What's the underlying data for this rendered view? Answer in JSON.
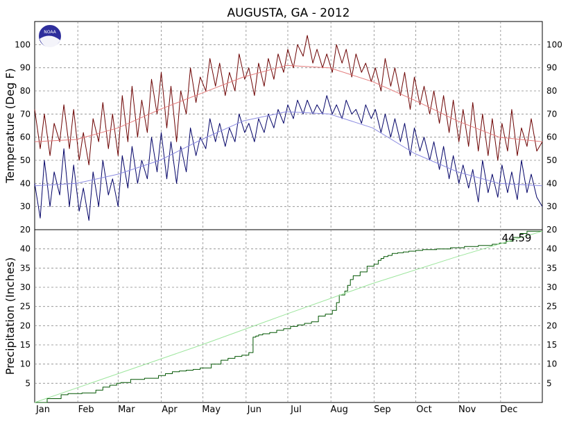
{
  "chart_data": [
    {
      "type": "line",
      "title": "AUGUSTA, GA - 2012",
      "ylabel": "Temperature (Deg F)",
      "ylim": [
        20,
        110
      ],
      "yticks": [
        20,
        30,
        40,
        50,
        60,
        70,
        80,
        90,
        100
      ],
      "xlim": [
        1,
        366
      ],
      "grid": true,
      "series": [
        {
          "color": "#6b0000",
          "x": [
            1,
            5,
            8,
            12,
            15,
            19,
            22,
            26,
            29,
            33,
            36,
            40,
            43,
            47,
            50,
            54,
            57,
            61,
            64,
            68,
            71,
            75,
            78,
            82,
            85,
            89,
            92,
            96,
            99,
            103,
            106,
            110,
            113,
            117,
            120,
            124,
            127,
            131,
            134,
            138,
            141,
            145,
            148,
            152,
            155,
            159,
            162,
            166,
            169,
            173,
            176,
            180,
            183,
            187,
            190,
            194,
            197,
            201,
            204,
            208,
            211,
            215,
            218,
            222,
            225,
            229,
            232,
            236,
            239,
            243,
            246,
            250,
            253,
            257,
            260,
            264,
            267,
            271,
            274,
            278,
            281,
            285,
            288,
            292,
            295,
            299,
            302,
            306,
            309,
            313,
            316,
            320,
            323,
            327,
            330,
            334,
            337,
            341,
            344,
            348,
            351,
            355,
            358,
            362,
            366
          ],
          "values": [
            72,
            55,
            70,
            52,
            66,
            58,
            74,
            55,
            72,
            50,
            62,
            48,
            68,
            58,
            75,
            55,
            70,
            52,
            78,
            58,
            82,
            60,
            76,
            62,
            85,
            70,
            88,
            64,
            82,
            58,
            80,
            70,
            90,
            75,
            86,
            80,
            94,
            82,
            92,
            78,
            88,
            80,
            96,
            85,
            90,
            78,
            92,
            82,
            94,
            85,
            96,
            88,
            98,
            90,
            100,
            95,
            104,
            92,
            98,
            90,
            96,
            88,
            100,
            92,
            98,
            86,
            96,
            88,
            92,
            84,
            90,
            80,
            94,
            82,
            90,
            78,
            88,
            72,
            86,
            74,
            82,
            70,
            80,
            66,
            78,
            62,
            76,
            58,
            72,
            56,
            75,
            54,
            70,
            52,
            68,
            50,
            66,
            54,
            72,
            52,
            64,
            56,
            68,
            54,
            58
          ]
        },
        {
          "color": "#000066",
          "x": [
            1,
            5,
            8,
            12,
            15,
            19,
            22,
            26,
            29,
            33,
            36,
            40,
            43,
            47,
            50,
            54,
            57,
            61,
            64,
            68,
            71,
            75,
            78,
            82,
            85,
            89,
            92,
            96,
            99,
            103,
            106,
            110,
            113,
            117,
            120,
            124,
            127,
            131,
            134,
            138,
            141,
            145,
            148,
            152,
            155,
            159,
            162,
            166,
            169,
            173,
            176,
            180,
            183,
            187,
            190,
            194,
            197,
            201,
            204,
            208,
            211,
            215,
            218,
            222,
            225,
            229,
            232,
            236,
            239,
            243,
            246,
            250,
            253,
            257,
            260,
            264,
            267,
            271,
            274,
            278,
            281,
            285,
            288,
            292,
            295,
            299,
            302,
            306,
            309,
            313,
            316,
            320,
            323,
            327,
            330,
            334,
            337,
            341,
            344,
            348,
            351,
            355,
            358,
            362,
            366
          ],
          "values": [
            40,
            25,
            50,
            30,
            45,
            35,
            55,
            30,
            48,
            28,
            38,
            24,
            45,
            30,
            50,
            35,
            42,
            30,
            52,
            38,
            56,
            40,
            50,
            42,
            60,
            45,
            62,
            42,
            58,
            40,
            56,
            45,
            64,
            52,
            60,
            55,
            68,
            58,
            66,
            56,
            64,
            58,
            70,
            62,
            66,
            58,
            68,
            62,
            70,
            64,
            72,
            66,
            74,
            68,
            76,
            70,
            76,
            70,
            74,
            70,
            78,
            70,
            74,
            68,
            76,
            70,
            72,
            66,
            74,
            68,
            72,
            62,
            70,
            60,
            68,
            58,
            66,
            52,
            64,
            54,
            60,
            50,
            58,
            46,
            56,
            42,
            52,
            40,
            48,
            38,
            46,
            32,
            50,
            36,
            44,
            34,
            48,
            36,
            45,
            33,
            50,
            36,
            44,
            34,
            30
          ]
        },
        {
          "color": "#e37b7b",
          "x": [
            1,
            31,
            61,
            91,
            121,
            151,
            182,
            213,
            244,
            274,
            305,
            335,
            366
          ],
          "values": [
            58,
            59,
            64,
            72,
            79,
            86,
            91,
            90,
            84,
            76,
            67,
            60,
            58
          ]
        },
        {
          "color": "#8a8ae0",
          "x": [
            1,
            31,
            61,
            91,
            121,
            151,
            182,
            213,
            244,
            274,
            305,
            335,
            366
          ],
          "values": [
            39,
            40,
            44,
            50,
            59,
            67,
            71,
            70,
            64,
            53,
            45,
            40,
            39
          ]
        }
      ],
      "right_ticks": true
    },
    {
      "type": "line",
      "ylabel": "Precipitation (Inches)",
      "ylim": [
        0,
        45
      ],
      "yticks": [
        5,
        10,
        15,
        20,
        25,
        30,
        35,
        40
      ],
      "xlim": [
        1,
        366
      ],
      "grid": true,
      "annotation": "44.59",
      "series": [
        {
          "color": "#005500",
          "step": true,
          "x": [
            1,
            10,
            20,
            25,
            35,
            45,
            50,
            55,
            60,
            63,
            70,
            80,
            90,
            95,
            100,
            105,
            110,
            115,
            120,
            128,
            135,
            140,
            145,
            150,
            155,
            158,
            160,
            162,
            165,
            170,
            175,
            180,
            185,
            190,
            195,
            200,
            205,
            210,
            215,
            218,
            220,
            224,
            226,
            228,
            230,
            235,
            240,
            245,
            248,
            250,
            252,
            255,
            258,
            262,
            266,
            270,
            275,
            280,
            290,
            300,
            310,
            320,
            330,
            335,
            340,
            345,
            350,
            355,
            358,
            361,
            363,
            366
          ],
          "values": [
            0,
            1,
            2,
            2.3,
            2.5,
            3.2,
            4,
            4.5,
            5,
            5.2,
            6,
            6.3,
            7,
            7.5,
            8,
            8.2,
            8.4,
            8.6,
            9,
            10,
            11,
            11.5,
            12,
            12.3,
            13,
            17,
            17.3,
            17.6,
            17.9,
            18.2,
            18.8,
            19.2,
            19.8,
            20.2,
            20.6,
            21,
            22.5,
            23,
            24,
            26,
            28,
            29,
            30.5,
            32,
            33,
            34,
            35.5,
            36,
            37,
            37.5,
            38,
            38.3,
            38.8,
            39,
            39.2,
            39.4,
            39.6,
            39.8,
            40,
            40.3,
            40.6,
            40.9,
            41.2,
            41.5,
            42,
            43,
            44,
            44.59,
            44.59,
            44.59,
            44.59,
            44.59
          ]
        },
        {
          "color": "#9ce59c",
          "step": false,
          "x": [
            1,
            61,
            121,
            182,
            244,
            305,
            366
          ],
          "values": [
            0,
            7.5,
            15,
            23,
            31,
            38,
            44.6
          ]
        }
      ]
    }
  ],
  "x_axis": {
    "month_labels": [
      "Jan",
      "Feb",
      "Mar",
      "Apr",
      "May",
      "Jun",
      "Jul",
      "Aug",
      "Sep",
      "Oct",
      "Nov",
      "Dec"
    ]
  },
  "logo": {
    "text": "NOAA",
    "color": "#2e2e9c"
  }
}
